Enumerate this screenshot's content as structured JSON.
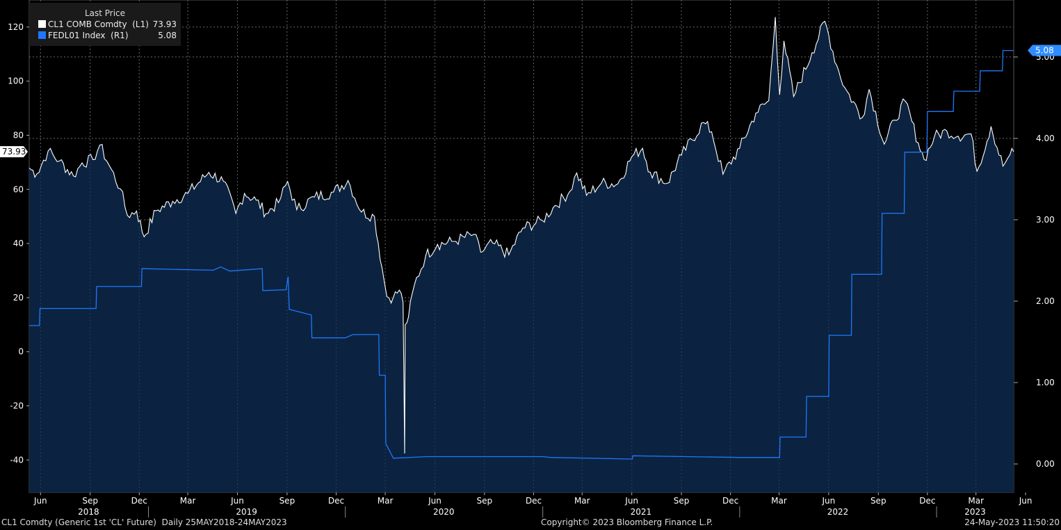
{
  "legend": {
    "header": "Last Price",
    "items": [
      {
        "name": "CL1 COMB Comdty  (L1)",
        "value": "73.93",
        "color": "#ffffff"
      },
      {
        "name": "FEDL01 Index  (R1)",
        "value": "5.08",
        "color": "#1f77ff"
      }
    ]
  },
  "footer": {
    "left": "CL1 Comdty (Generic 1st 'CL' Future)  Daily 25MAY2018-24MAY2023",
    "center": "Copyright© 2023 Bloomberg Finance L.P.",
    "right": "24-May-2023 11:50:20"
  },
  "colors": {
    "background": "#000000",
    "area_fill": "#0b2340",
    "oil_line": "#ffffff",
    "fed_line": "#1f77ff",
    "last_label_fed": "#2f8cff"
  },
  "chart_data": {
    "type": "line",
    "x_start": "2018-05-25",
    "x_end": "2023-05-24",
    "left_axis": {
      "ticks": [
        -40,
        -20,
        0,
        20,
        40,
        60,
        80,
        100,
        120
      ],
      "range": [
        -52,
        130
      ]
    },
    "right_axis": {
      "ticks": [
        "0.00",
        "1.00",
        "2.00",
        "3.00",
        "4.00",
        "5.00"
      ],
      "range": [
        -0.35,
        5.7
      ]
    },
    "month_ticks": [
      "Jun",
      "Sep",
      "Dec",
      "Mar",
      "Jun",
      "Sep",
      "Dec",
      "Mar",
      "Jun",
      "Sep",
      "Dec",
      "Mar",
      "Jun",
      "Sep",
      "Dec",
      "Mar",
      "Jun",
      "Sep",
      "Dec",
      "Mar",
      "Jun"
    ],
    "year_labels": [
      "2018",
      "2019",
      "2020",
      "2021",
      "2022",
      "2023"
    ],
    "series": [
      {
        "name": "CL1 COMB Comdty",
        "axis": "left",
        "last_value_label": "73.93",
        "points": [
          [
            "2018-05-25",
            67.9
          ],
          [
            "2018-06-08",
            65.7
          ],
          [
            "2018-06-29",
            74.2
          ],
          [
            "2018-07-20",
            70.5
          ],
          [
            "2018-08-15",
            65.0
          ],
          [
            "2018-08-31",
            69.8
          ],
          [
            "2018-09-20",
            71.0
          ],
          [
            "2018-10-03",
            76.4
          ],
          [
            "2018-10-20",
            69.0
          ],
          [
            "2018-11-10",
            60.2
          ],
          [
            "2018-11-23",
            50.4
          ],
          [
            "2018-12-10",
            52.0
          ],
          [
            "2018-12-24",
            42.5
          ],
          [
            "2019-01-15",
            52.1
          ],
          [
            "2019-02-15",
            55.6
          ],
          [
            "2019-03-15",
            58.5
          ],
          [
            "2019-04-23",
            66.3
          ],
          [
            "2019-05-20",
            63.0
          ],
          [
            "2019-06-12",
            51.1
          ],
          [
            "2019-06-28",
            58.5
          ],
          [
            "2019-07-20",
            56.0
          ],
          [
            "2019-08-07",
            51.1
          ],
          [
            "2019-08-30",
            55.1
          ],
          [
            "2019-09-16",
            62.9
          ],
          [
            "2019-10-03",
            52.5
          ],
          [
            "2019-11-05",
            57.2
          ],
          [
            "2019-12-10",
            59.0
          ],
          [
            "2020-01-06",
            63.3
          ],
          [
            "2020-01-31",
            51.6
          ],
          [
            "2020-02-24",
            50.0
          ],
          [
            "2020-03-09",
            31.1
          ],
          [
            "2020-03-18",
            20.4
          ],
          [
            "2020-03-30",
            20.1
          ],
          [
            "2020-04-10",
            22.8
          ],
          [
            "2020-04-17",
            18.3
          ],
          [
            "2020-04-20",
            -37.6
          ],
          [
            "2020-04-21",
            10.0
          ],
          [
            "2020-04-27",
            12.8
          ],
          [
            "2020-05-08",
            24.7
          ],
          [
            "2020-05-29",
            35.5
          ],
          [
            "2020-06-20",
            39.7
          ],
          [
            "2020-07-20",
            40.8
          ],
          [
            "2020-08-26",
            43.4
          ],
          [
            "2020-09-08",
            36.8
          ],
          [
            "2020-09-30",
            40.2
          ],
          [
            "2020-10-30",
            35.8
          ],
          [
            "2020-11-25",
            45.7
          ],
          [
            "2020-12-31",
            48.5
          ],
          [
            "2021-01-20",
            53.2
          ],
          [
            "2021-02-20",
            59.2
          ],
          [
            "2021-03-05",
            66.1
          ],
          [
            "2021-03-23",
            57.8
          ],
          [
            "2021-04-20",
            62.4
          ],
          [
            "2021-05-20",
            62.0
          ],
          [
            "2021-06-15",
            72.1
          ],
          [
            "2021-07-05",
            75.2
          ],
          [
            "2021-07-19",
            66.4
          ],
          [
            "2021-08-20",
            62.3
          ],
          [
            "2021-09-15",
            72.6
          ],
          [
            "2021-10-26",
            84.7
          ],
          [
            "2021-11-10",
            81.3
          ],
          [
            "2021-12-01",
            65.6
          ],
          [
            "2022-01-01",
            75.2
          ],
          [
            "2022-01-31",
            88.2
          ],
          [
            "2022-02-24",
            92.8
          ],
          [
            "2022-03-08",
            123.7
          ],
          [
            "2022-03-16",
            95.0
          ],
          [
            "2022-03-24",
            114.9
          ],
          [
            "2022-04-11",
            94.3
          ],
          [
            "2022-05-15",
            110.5
          ],
          [
            "2022-06-08",
            122.1
          ],
          [
            "2022-06-30",
            105.8
          ],
          [
            "2022-07-15",
            97.6
          ],
          [
            "2022-08-16",
            86.5
          ],
          [
            "2022-08-29",
            97.0
          ],
          [
            "2022-09-26",
            76.7
          ],
          [
            "2022-10-15",
            85.6
          ],
          [
            "2022-11-04",
            92.6
          ],
          [
            "2022-11-28",
            77.2
          ],
          [
            "2022-12-09",
            71.0
          ],
          [
            "2022-12-28",
            79.5
          ],
          [
            "2023-01-20",
            81.6
          ],
          [
            "2023-02-10",
            79.7
          ],
          [
            "2023-03-06",
            80.5
          ],
          [
            "2023-03-17",
            66.7
          ],
          [
            "2023-04-12",
            83.3
          ],
          [
            "2023-05-04",
            68.6
          ],
          [
            "2023-05-17",
            72.8
          ],
          [
            "2023-05-24",
            73.93
          ]
        ]
      },
      {
        "name": "FEDL01 Index",
        "axis": "right",
        "last_value_label": "5.08",
        "points": [
          [
            "2018-05-25",
            1.7
          ],
          [
            "2018-06-13",
            1.7
          ],
          [
            "2018-06-14",
            1.91
          ],
          [
            "2018-09-26",
            1.91
          ],
          [
            "2018-09-27",
            2.18
          ],
          [
            "2018-12-19",
            2.18
          ],
          [
            "2018-12-20",
            2.4
          ],
          [
            "2019-05-01",
            2.38
          ],
          [
            "2019-05-15",
            2.42
          ],
          [
            "2019-06-01",
            2.37
          ],
          [
            "2019-07-31",
            2.4
          ],
          [
            "2019-08-01",
            2.13
          ],
          [
            "2019-09-13",
            2.14
          ],
          [
            "2019-09-17",
            2.3
          ],
          [
            "2019-09-19",
            1.9
          ],
          [
            "2019-10-30",
            1.83
          ],
          [
            "2019-10-31",
            1.55
          ],
          [
            "2020-01-01",
            1.55
          ],
          [
            "2020-01-15",
            1.59
          ],
          [
            "2020-03-03",
            1.59
          ],
          [
            "2020-03-04",
            1.09
          ],
          [
            "2020-03-15",
            1.09
          ],
          [
            "2020-03-16",
            0.25
          ],
          [
            "2020-03-30",
            0.07
          ],
          [
            "2020-06-01",
            0.09
          ],
          [
            "2020-12-31",
            0.09
          ],
          [
            "2021-01-15",
            0.08
          ],
          [
            "2021-06-16",
            0.06
          ],
          [
            "2021-06-17",
            0.1
          ],
          [
            "2021-12-31",
            0.08
          ],
          [
            "2022-03-16",
            0.08
          ],
          [
            "2022-03-17",
            0.33
          ],
          [
            "2022-05-04",
            0.33
          ],
          [
            "2022-05-05",
            0.83
          ],
          [
            "2022-06-15",
            0.83
          ],
          [
            "2022-06-16",
            1.58
          ],
          [
            "2022-07-27",
            1.58
          ],
          [
            "2022-07-28",
            2.33
          ],
          [
            "2022-09-21",
            2.33
          ],
          [
            "2022-09-22",
            3.08
          ],
          [
            "2022-11-02",
            3.08
          ],
          [
            "2022-11-03",
            3.83
          ],
          [
            "2022-12-14",
            3.83
          ],
          [
            "2022-12-15",
            4.33
          ],
          [
            "2023-02-01",
            4.33
          ],
          [
            "2023-02-02",
            4.58
          ],
          [
            "2023-03-22",
            4.58
          ],
          [
            "2023-03-23",
            4.83
          ],
          [
            "2023-05-03",
            4.83
          ],
          [
            "2023-05-04",
            5.08
          ],
          [
            "2023-05-24",
            5.08
          ]
        ]
      }
    ]
  }
}
